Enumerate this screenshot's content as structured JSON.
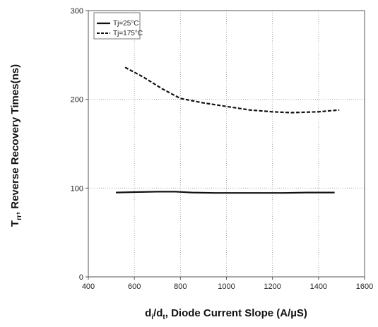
{
  "chart_data": {
    "type": "line",
    "xlabel": {
      "main": "d",
      "sub1": "i",
      "sep": "/d",
      "sub2": "t",
      "rest": ", Diode Current Slope (A/µS)"
    },
    "ylabel": {
      "main": "T",
      "sub": "rr",
      "rest": ", Reverse Recovery Times(ns)"
    },
    "xlim": [
      400,
      1600
    ],
    "ylim": [
      0,
      300
    ],
    "xticks": [
      "400",
      "600",
      "800",
      "1000",
      "1200",
      "1400",
      "1600"
    ],
    "yticks": [
      "0",
      "100",
      "200",
      "300"
    ],
    "legend_position": "top-left",
    "grid": "dotted",
    "series": [
      {
        "name": "Tj=25°C",
        "style": "solid",
        "color": "#111111",
        "x": [
          520,
          600,
          700,
          780,
          850,
          950,
          1050,
          1150,
          1250,
          1350,
          1470
        ],
        "y": [
          95,
          95.5,
          96,
          96,
          95,
          94.5,
          94.5,
          94.5,
          94.5,
          95,
          95
        ]
      },
      {
        "name": "Tj=175°C",
        "style": "dashed",
        "color": "#111111",
        "x": [
          560,
          640,
          720,
          800,
          900,
          1000,
          1100,
          1200,
          1280,
          1400,
          1490
        ],
        "y": [
          236,
          225,
          212,
          201,
          196,
          192,
          188,
          186,
          185,
          186,
          188
        ]
      }
    ]
  }
}
